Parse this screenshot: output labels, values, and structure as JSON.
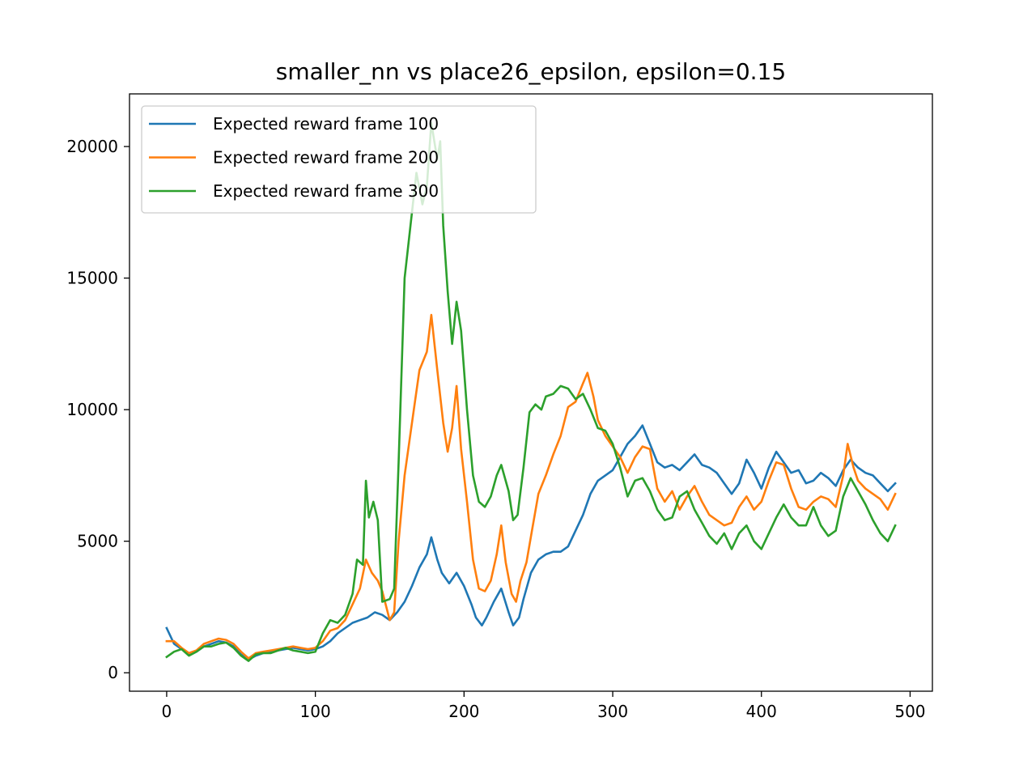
{
  "chart_data": {
    "type": "line",
    "title": "smaller_nn vs place26_epsilon, epsilon=0.15",
    "xlabel": "",
    "ylabel": "",
    "xlim": [
      -25,
      515
    ],
    "ylim": [
      -700,
      22000
    ],
    "x_ticks": [
      0,
      100,
      200,
      300,
      400,
      500
    ],
    "y_ticks": [
      0,
      5000,
      10000,
      15000,
      20000
    ],
    "grid": false,
    "legend_position": "top-left",
    "series": [
      {
        "name": "Expected reward frame 100",
        "color": "#1f77b4",
        "points": [
          [
            0,
            1700
          ],
          [
            5,
            1100
          ],
          [
            10,
            900
          ],
          [
            15,
            700
          ],
          [
            20,
            800
          ],
          [
            25,
            1000
          ],
          [
            30,
            1100
          ],
          [
            35,
            1200
          ],
          [
            40,
            1150
          ],
          [
            45,
            1000
          ],
          [
            50,
            700
          ],
          [
            55,
            500
          ],
          [
            60,
            650
          ],
          [
            65,
            750
          ],
          [
            70,
            800
          ],
          [
            75,
            850
          ],
          [
            80,
            900
          ],
          [
            85,
            950
          ],
          [
            90,
            900
          ],
          [
            95,
            850
          ],
          [
            100,
            900
          ],
          [
            105,
            1000
          ],
          [
            110,
            1200
          ],
          [
            115,
            1500
          ],
          [
            120,
            1700
          ],
          [
            125,
            1900
          ],
          [
            130,
            2000
          ],
          [
            135,
            2100
          ],
          [
            140,
            2300
          ],
          [
            145,
            2200
          ],
          [
            150,
            2000
          ],
          [
            155,
            2300
          ],
          [
            160,
            2700
          ],
          [
            165,
            3300
          ],
          [
            170,
            4000
          ],
          [
            175,
            4500
          ],
          [
            178,
            5150
          ],
          [
            182,
            4300
          ],
          [
            185,
            3800
          ],
          [
            190,
            3400
          ],
          [
            195,
            3800
          ],
          [
            200,
            3300
          ],
          [
            205,
            2600
          ],
          [
            208,
            2100
          ],
          [
            212,
            1800
          ],
          [
            215,
            2100
          ],
          [
            220,
            2700
          ],
          [
            225,
            3200
          ],
          [
            230,
            2300
          ],
          [
            233,
            1800
          ],
          [
            237,
            2100
          ],
          [
            240,
            2800
          ],
          [
            245,
            3800
          ],
          [
            250,
            4300
          ],
          [
            255,
            4500
          ],
          [
            260,
            4600
          ],
          [
            265,
            4600
          ],
          [
            270,
            4800
          ],
          [
            275,
            5400
          ],
          [
            280,
            6000
          ],
          [
            285,
            6800
          ],
          [
            290,
            7300
          ],
          [
            295,
            7500
          ],
          [
            300,
            7700
          ],
          [
            305,
            8200
          ],
          [
            310,
            8700
          ],
          [
            315,
            9000
          ],
          [
            320,
            9400
          ],
          [
            325,
            8700
          ],
          [
            330,
            8000
          ],
          [
            335,
            7800
          ],
          [
            340,
            7900
          ],
          [
            345,
            7700
          ],
          [
            350,
            8000
          ],
          [
            355,
            8300
          ],
          [
            360,
            7900
          ],
          [
            365,
            7800
          ],
          [
            370,
            7600
          ],
          [
            375,
            7200
          ],
          [
            380,
            6800
          ],
          [
            385,
            7200
          ],
          [
            390,
            8100
          ],
          [
            395,
            7600
          ],
          [
            400,
            7000
          ],
          [
            405,
            7800
          ],
          [
            410,
            8400
          ],
          [
            415,
            8000
          ],
          [
            420,
            7600
          ],
          [
            425,
            7700
          ],
          [
            430,
            7200
          ],
          [
            435,
            7300
          ],
          [
            440,
            7600
          ],
          [
            445,
            7400
          ],
          [
            450,
            7100
          ],
          [
            455,
            7700
          ],
          [
            460,
            8100
          ],
          [
            465,
            7800
          ],
          [
            470,
            7600
          ],
          [
            475,
            7500
          ],
          [
            480,
            7200
          ],
          [
            485,
            6900
          ],
          [
            490,
            7200
          ]
        ]
      },
      {
        "name": "Expected reward frame 200",
        "color": "#ff7f0e",
        "points": [
          [
            0,
            1200
          ],
          [
            5,
            1200
          ],
          [
            10,
            950
          ],
          [
            15,
            750
          ],
          [
            20,
            850
          ],
          [
            25,
            1100
          ],
          [
            30,
            1200
          ],
          [
            35,
            1300
          ],
          [
            40,
            1250
          ],
          [
            45,
            1100
          ],
          [
            50,
            800
          ],
          [
            55,
            550
          ],
          [
            60,
            750
          ],
          [
            65,
            800
          ],
          [
            70,
            850
          ],
          [
            75,
            900
          ],
          [
            80,
            950
          ],
          [
            85,
            1000
          ],
          [
            90,
            950
          ],
          [
            95,
            900
          ],
          [
            100,
            950
          ],
          [
            105,
            1200
          ],
          [
            110,
            1600
          ],
          [
            115,
            1700
          ],
          [
            120,
            2000
          ],
          [
            125,
            2600
          ],
          [
            130,
            3200
          ],
          [
            134,
            4300
          ],
          [
            138,
            3800
          ],
          [
            142,
            3500
          ],
          [
            145,
            3100
          ],
          [
            150,
            2000
          ],
          [
            153,
            2300
          ],
          [
            156,
            5000
          ],
          [
            160,
            7500
          ],
          [
            165,
            9500
          ],
          [
            170,
            11500
          ],
          [
            175,
            12200
          ],
          [
            178,
            13600
          ],
          [
            182,
            11500
          ],
          [
            186,
            9500
          ],
          [
            189,
            8400
          ],
          [
            192,
            9300
          ],
          [
            195,
            10900
          ],
          [
            198,
            8500
          ],
          [
            202,
            6500
          ],
          [
            206,
            4300
          ],
          [
            210,
            3200
          ],
          [
            214,
            3100
          ],
          [
            218,
            3500
          ],
          [
            222,
            4500
          ],
          [
            225,
            5600
          ],
          [
            228,
            4200
          ],
          [
            232,
            3000
          ],
          [
            235,
            2700
          ],
          [
            238,
            3500
          ],
          [
            242,
            4200
          ],
          [
            246,
            5500
          ],
          [
            250,
            6800
          ],
          [
            255,
            7500
          ],
          [
            260,
            8300
          ],
          [
            265,
            9000
          ],
          [
            270,
            10100
          ],
          [
            275,
            10300
          ],
          [
            280,
            11000
          ],
          [
            283,
            11400
          ],
          [
            287,
            10500
          ],
          [
            290,
            9600
          ],
          [
            295,
            9000
          ],
          [
            300,
            8600
          ],
          [
            305,
            8200
          ],
          [
            310,
            7600
          ],
          [
            315,
            8200
          ],
          [
            320,
            8600
          ],
          [
            325,
            8500
          ],
          [
            330,
            7000
          ],
          [
            335,
            6500
          ],
          [
            340,
            6900
          ],
          [
            345,
            6200
          ],
          [
            350,
            6700
          ],
          [
            355,
            7100
          ],
          [
            360,
            6500
          ],
          [
            365,
            6000
          ],
          [
            370,
            5800
          ],
          [
            375,
            5600
          ],
          [
            380,
            5700
          ],
          [
            385,
            6300
          ],
          [
            390,
            6700
          ],
          [
            395,
            6200
          ],
          [
            400,
            6500
          ],
          [
            405,
            7300
          ],
          [
            410,
            8000
          ],
          [
            415,
            7900
          ],
          [
            420,
            7000
          ],
          [
            425,
            6300
          ],
          [
            430,
            6200
          ],
          [
            435,
            6500
          ],
          [
            440,
            6700
          ],
          [
            445,
            6600
          ],
          [
            450,
            6300
          ],
          [
            455,
            7500
          ],
          [
            458,
            8700
          ],
          [
            462,
            7800
          ],
          [
            465,
            7300
          ],
          [
            470,
            7000
          ],
          [
            475,
            6800
          ],
          [
            480,
            6600
          ],
          [
            485,
            6200
          ],
          [
            490,
            6800
          ]
        ]
      },
      {
        "name": "Expected reward frame 300",
        "color": "#2ca02c",
        "points": [
          [
            0,
            600
          ],
          [
            5,
            800
          ],
          [
            10,
            900
          ],
          [
            15,
            650
          ],
          [
            20,
            800
          ],
          [
            25,
            1000
          ],
          [
            30,
            1000
          ],
          [
            35,
            1100
          ],
          [
            40,
            1150
          ],
          [
            45,
            950
          ],
          [
            50,
            650
          ],
          [
            55,
            450
          ],
          [
            60,
            700
          ],
          [
            65,
            750
          ],
          [
            70,
            750
          ],
          [
            75,
            850
          ],
          [
            80,
            950
          ],
          [
            85,
            850
          ],
          [
            90,
            800
          ],
          [
            95,
            750
          ],
          [
            100,
            800
          ],
          [
            105,
            1500
          ],
          [
            110,
            2000
          ],
          [
            115,
            1900
          ],
          [
            120,
            2200
          ],
          [
            125,
            3000
          ],
          [
            128,
            4300
          ],
          [
            132,
            4100
          ],
          [
            134,
            7300
          ],
          [
            136,
            5900
          ],
          [
            139,
            6500
          ],
          [
            142,
            5800
          ],
          [
            145,
            2700
          ],
          [
            150,
            2800
          ],
          [
            153,
            3200
          ],
          [
            156,
            8000
          ],
          [
            160,
            15000
          ],
          [
            165,
            17500
          ],
          [
            168,
            19000
          ],
          [
            172,
            17800
          ],
          [
            175,
            18500
          ],
          [
            178,
            20900
          ],
          [
            182,
            19500
          ],
          [
            184,
            20200
          ],
          [
            186,
            17000
          ],
          [
            189,
            14500
          ],
          [
            192,
            12500
          ],
          [
            195,
            14100
          ],
          [
            198,
            13000
          ],
          [
            202,
            10000
          ],
          [
            206,
            7500
          ],
          [
            210,
            6500
          ],
          [
            214,
            6300
          ],
          [
            218,
            6700
          ],
          [
            222,
            7500
          ],
          [
            225,
            7900
          ],
          [
            230,
            6900
          ],
          [
            233,
            5800
          ],
          [
            236,
            6000
          ],
          [
            240,
            7800
          ],
          [
            244,
            9900
          ],
          [
            248,
            10200
          ],
          [
            252,
            10000
          ],
          [
            255,
            10500
          ],
          [
            260,
            10600
          ],
          [
            265,
            10900
          ],
          [
            270,
            10800
          ],
          [
            275,
            10400
          ],
          [
            280,
            10600
          ],
          [
            285,
            10000
          ],
          [
            290,
            9300
          ],
          [
            295,
            9200
          ],
          [
            300,
            8700
          ],
          [
            305,
            7800
          ],
          [
            310,
            6700
          ],
          [
            315,
            7300
          ],
          [
            320,
            7400
          ],
          [
            325,
            6900
          ],
          [
            330,
            6200
          ],
          [
            335,
            5800
          ],
          [
            340,
            5900
          ],
          [
            345,
            6700
          ],
          [
            350,
            6900
          ],
          [
            355,
            6200
          ],
          [
            360,
            5700
          ],
          [
            365,
            5200
          ],
          [
            370,
            4900
          ],
          [
            375,
            5300
          ],
          [
            380,
            4700
          ],
          [
            385,
            5300
          ],
          [
            390,
            5600
          ],
          [
            395,
            5000
          ],
          [
            400,
            4700
          ],
          [
            405,
            5300
          ],
          [
            410,
            5900
          ],
          [
            415,
            6400
          ],
          [
            420,
            5900
          ],
          [
            425,
            5600
          ],
          [
            430,
            5600
          ],
          [
            435,
            6300
          ],
          [
            440,
            5600
          ],
          [
            445,
            5200
          ],
          [
            450,
            5400
          ],
          [
            455,
            6700
          ],
          [
            460,
            7400
          ],
          [
            465,
            6900
          ],
          [
            470,
            6400
          ],
          [
            475,
            5800
          ],
          [
            480,
            5300
          ],
          [
            485,
            5000
          ],
          [
            490,
            5600
          ]
        ]
      }
    ]
  }
}
